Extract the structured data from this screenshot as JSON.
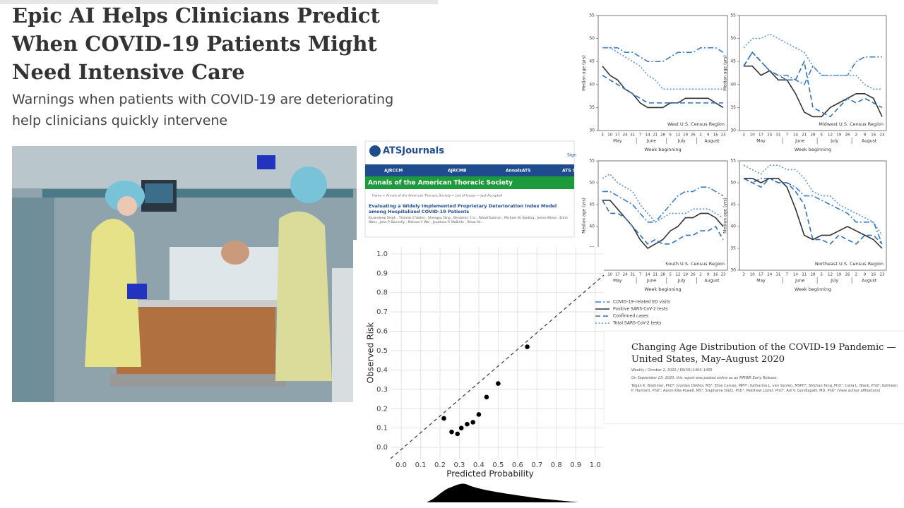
{
  "header": {
    "title": "Epic AI Helps Clinicians Predict When COVID-19 Patients Might Need Intensive Care",
    "subtitle": "Warnings when patients with COVID-19 are deteriorating help clinicians quickly intervene"
  },
  "journal": {
    "brand": "ATSJournals",
    "sign": "Sign",
    "nav": [
      "AJRCCM",
      "AJRCMB",
      "AnnalsATS",
      "ATS S"
    ],
    "banner": "Annals of the American Thoracic Society",
    "breadcrumb": "Home > Annals of the American Thoracic Society > List of Issues > Just Accepted",
    "article_title": "Evaluating a Widely Implemented Proprietary Deterioration Index Model among Hospitalized COVID-19 Patients",
    "authors": "Karandeep Singh , Thomas S Valley , Shengpu Tang , Benjamin Y. Li , Fahad Kamran , Michael W. Sjoding , Jenna Wiens , Erkin Otles , John P Donnelly , Melissa Y. Wei , Jonathon P. McBride , Show All..."
  },
  "report": {
    "title": "Changing Age Distribution of the COVID-19 Pandemic — United States, May–August 2020",
    "issue": "Weekly / October 2, 2020 / 69(39);1404–1405",
    "release": "On September 23, 2020, this report was posted online as an MMWR Early Release.",
    "authors": "Tegan K. Boehmer, PhD¹; Jourdan DeVies, MS¹; Elise Caruso, MPH¹; Katharina L. van Santen, MSPH¹; Shichao Tang, PhD¹; Carla L. Black, PhD¹; Kathleen P. Hartnett, PhD¹; Aaron Kite-Powell, MS¹; Stephanie Dietz, PhD¹; Matthew Lozier, PhD¹; Adi V. Gundlapalli, MD, PhD¹ (View author affiliations)"
  },
  "chart_data": [
    {
      "type": "line",
      "title": "West U.S. Census Region",
      "xlabel": "Week beginning",
      "ylabel": "Median age (yrs)",
      "categories": [
        "3",
        "10",
        "17",
        "24",
        "31",
        "7",
        "14",
        "21",
        "28",
        "5",
        "12",
        "19",
        "26",
        "2",
        "9",
        "16",
        "23"
      ],
      "months": [
        "May",
        "June",
        "July",
        "August"
      ],
      "ylim": [
        30,
        55
      ],
      "yticks": [
        30,
        35,
        40,
        45,
        50,
        55
      ],
      "series": [
        {
          "name": "COVID-19–related ED visits",
          "color": "#3b7cc9",
          "style": "dash-dot",
          "values": [
            48,
            48,
            48,
            47,
            47,
            46,
            45,
            45,
            45,
            46,
            47,
            47,
            47,
            48,
            48,
            48,
            47
          ]
        },
        {
          "name": "Positive SARS-CoV-2 tests",
          "color": "#333333",
          "style": "solid",
          "values": [
            44,
            42,
            41,
            39,
            38,
            36,
            35,
            35,
            35,
            36,
            36,
            37,
            37,
            37,
            37,
            36,
            35
          ]
        },
        {
          "name": "Confirmed cases",
          "color": "#2f6fb8",
          "style": "dashed",
          "values": [
            42,
            41,
            40,
            39,
            38,
            37,
            36,
            36,
            36,
            36,
            36,
            36,
            36,
            36,
            36,
            36,
            36
          ]
        },
        {
          "name": "Total SARS-CoV-2 tests",
          "color": "#5b92db",
          "style": "dotted",
          "values": [
            48,
            48,
            47,
            46,
            45,
            44,
            42,
            41,
            39,
            39,
            39,
            39,
            39,
            39,
            39,
            39,
            39
          ]
        }
      ]
    },
    {
      "type": "line",
      "title": "Midwest U.S. Census Region",
      "xlabel": "Week beginning",
      "ylabel": "Median age (yrs)",
      "categories": [
        "3",
        "10",
        "17",
        "24",
        "31",
        "7",
        "14",
        "21",
        "28",
        "5",
        "12",
        "19",
        "26",
        "2",
        "9",
        "16",
        "23"
      ],
      "months": [
        "May",
        "June",
        "July",
        "August"
      ],
      "ylim": [
        30,
        55
      ],
      "yticks": [
        30,
        35,
        40,
        45,
        50,
        55
      ],
      "series": [
        {
          "color": "#3b7cc9",
          "style": "dash-dot",
          "values": [
            44,
            47,
            45,
            43,
            42,
            42,
            41,
            40,
            44,
            42,
            42,
            42,
            42,
            45,
            46,
            46,
            46
          ]
        },
        {
          "color": "#333333",
          "style": "solid",
          "values": [
            44,
            44,
            42,
            43,
            41,
            41,
            38,
            34,
            33,
            33,
            35,
            36,
            37,
            38,
            38,
            37,
            33
          ]
        },
        {
          "color": "#2f6fb8",
          "style": "dashed",
          "values": [
            44,
            47,
            45,
            43,
            42,
            41,
            41,
            45,
            35,
            34,
            33,
            35,
            37,
            36,
            37,
            36,
            35
          ]
        },
        {
          "color": "#5b92db",
          "style": "dotted",
          "values": [
            48,
            50,
            50,
            51,
            50,
            49,
            48,
            47,
            44,
            42,
            42,
            42,
            42,
            42,
            40,
            39,
            39
          ]
        }
      ]
    },
    {
      "type": "line",
      "title": "South U.S. Census Region",
      "xlabel": "Week beginning",
      "ylabel": "Median age (yrs)",
      "categories": [
        "3",
        "10",
        "17",
        "24",
        "31",
        "7",
        "14",
        "21",
        "28",
        "5",
        "12",
        "19",
        "26",
        "2",
        "9",
        "16",
        "23"
      ],
      "months": [
        "May",
        "June",
        "July",
        "August"
      ],
      "ylim": [
        30,
        55
      ],
      "yticks": [
        30,
        35,
        40,
        45,
        50,
        55
      ],
      "series": [
        {
          "color": "#3b7cc9",
          "style": "dash-dot",
          "values": [
            48,
            48,
            47,
            46,
            45,
            43,
            41,
            41,
            43,
            45,
            47,
            48,
            48,
            49,
            49,
            48,
            47
          ]
        },
        {
          "color": "#333333",
          "style": "solid",
          "values": [
            46,
            46,
            44,
            42,
            40,
            37,
            35,
            36,
            37,
            39,
            40,
            42,
            42,
            43,
            43,
            42,
            40
          ]
        },
        {
          "color": "#2f6fb8",
          "style": "dashed",
          "values": [
            46,
            43,
            43,
            42,
            40,
            38,
            36,
            37,
            36,
            36,
            37,
            38,
            38,
            39,
            39,
            40,
            37
          ]
        },
        {
          "color": "#5b92db",
          "style": "dotted",
          "values": [
            51,
            52,
            50,
            49,
            48,
            45,
            43,
            41,
            42,
            43,
            43,
            43,
            44,
            44,
            44,
            43,
            42
          ]
        }
      ]
    },
    {
      "type": "line",
      "title": "Northeast U.S. Census Region",
      "xlabel": "Week beginning",
      "ylabel": "Median age (yrs)",
      "categories": [
        "3",
        "10",
        "17",
        "24",
        "31",
        "7",
        "14",
        "21",
        "28",
        "5",
        "12",
        "19",
        "26",
        "2",
        "9",
        "16",
        "23"
      ],
      "months": [
        "May",
        "June",
        "July",
        "August"
      ],
      "ylim": [
        30,
        55
      ],
      "yticks": [
        30,
        35,
        40,
        45,
        50,
        55
      ],
      "series": [
        {
          "color": "#3b7cc9",
          "style": "dash-dot",
          "values": [
            51,
            50,
            51,
            51,
            50,
            50,
            49,
            47,
            47,
            46,
            45,
            44,
            43,
            41,
            41,
            41,
            36
          ]
        },
        {
          "color": "#333333",
          "style": "solid",
          "values": [
            51,
            51,
            50,
            51,
            51,
            49,
            44,
            38,
            37,
            38,
            38,
            39,
            40,
            39,
            38,
            37,
            35
          ]
        },
        {
          "color": "#2f6fb8",
          "style": "dashed",
          "values": [
            51,
            50,
            49,
            51,
            50,
            50,
            48,
            45,
            37,
            37,
            36,
            38,
            37,
            36,
            38,
            38,
            36
          ]
        },
        {
          "color": "#5b92db",
          "style": "dotted",
          "values": [
            54,
            53,
            52,
            54,
            54,
            53,
            53,
            51,
            48,
            47,
            47,
            45,
            44,
            43,
            42,
            41,
            38
          ]
        }
      ]
    },
    {
      "type": "scatter",
      "xlabel": "Predicted Probability",
      "ylabel": "Observed Risk",
      "color": "#000000",
      "grid": true,
      "x": [
        0.22,
        0.26,
        0.29,
        0.31,
        0.34,
        0.37,
        0.4,
        0.44,
        0.5,
        0.65
      ],
      "values": [
        0.15,
        0.08,
        0.07,
        0.1,
        0.12,
        0.13,
        0.17,
        0.26,
        0.33,
        0.52
      ],
      "xlim": [
        -0.055,
        1.045
      ],
      "ylim": [
        -0.058,
        1.036
      ],
      "xticks": [
        {
          "value": 0,
          "label": "0.0"
        },
        {
          "value": 0.1,
          "label": "0.1"
        },
        {
          "value": 0.2,
          "label": "0.2"
        },
        {
          "value": 0.3,
          "label": "0.3"
        },
        {
          "value": 0.4,
          "label": "0.4"
        },
        {
          "value": 0.5,
          "label": "0.5"
        },
        {
          "value": 0.6,
          "label": "0.6"
        },
        {
          "value": 0.7,
          "label": "0.7"
        },
        {
          "value": 0.8,
          "label": "0.8"
        },
        {
          "value": 0.9,
          "label": "0.9"
        },
        {
          "value": 1,
          "label": "1.0"
        }
      ],
      "yticks": [
        {
          "value": 0,
          "label": "0.0"
        },
        {
          "value": 0.1,
          "label": "0.1"
        },
        {
          "value": 0.2,
          "label": "0.2"
        },
        {
          "value": 0.3,
          "label": "0.3"
        },
        {
          "value": 0.4,
          "label": "0.4"
        },
        {
          "value": 0.5,
          "label": "0.5"
        },
        {
          "value": 0.6,
          "label": "0.6"
        },
        {
          "value": 0.7,
          "label": "0.7"
        },
        {
          "value": 0.8,
          "label": "0.8"
        },
        {
          "value": 0.9,
          "label": "0.9"
        },
        {
          "value": 1,
          "label": "1.0"
        }
      ]
    }
  ]
}
